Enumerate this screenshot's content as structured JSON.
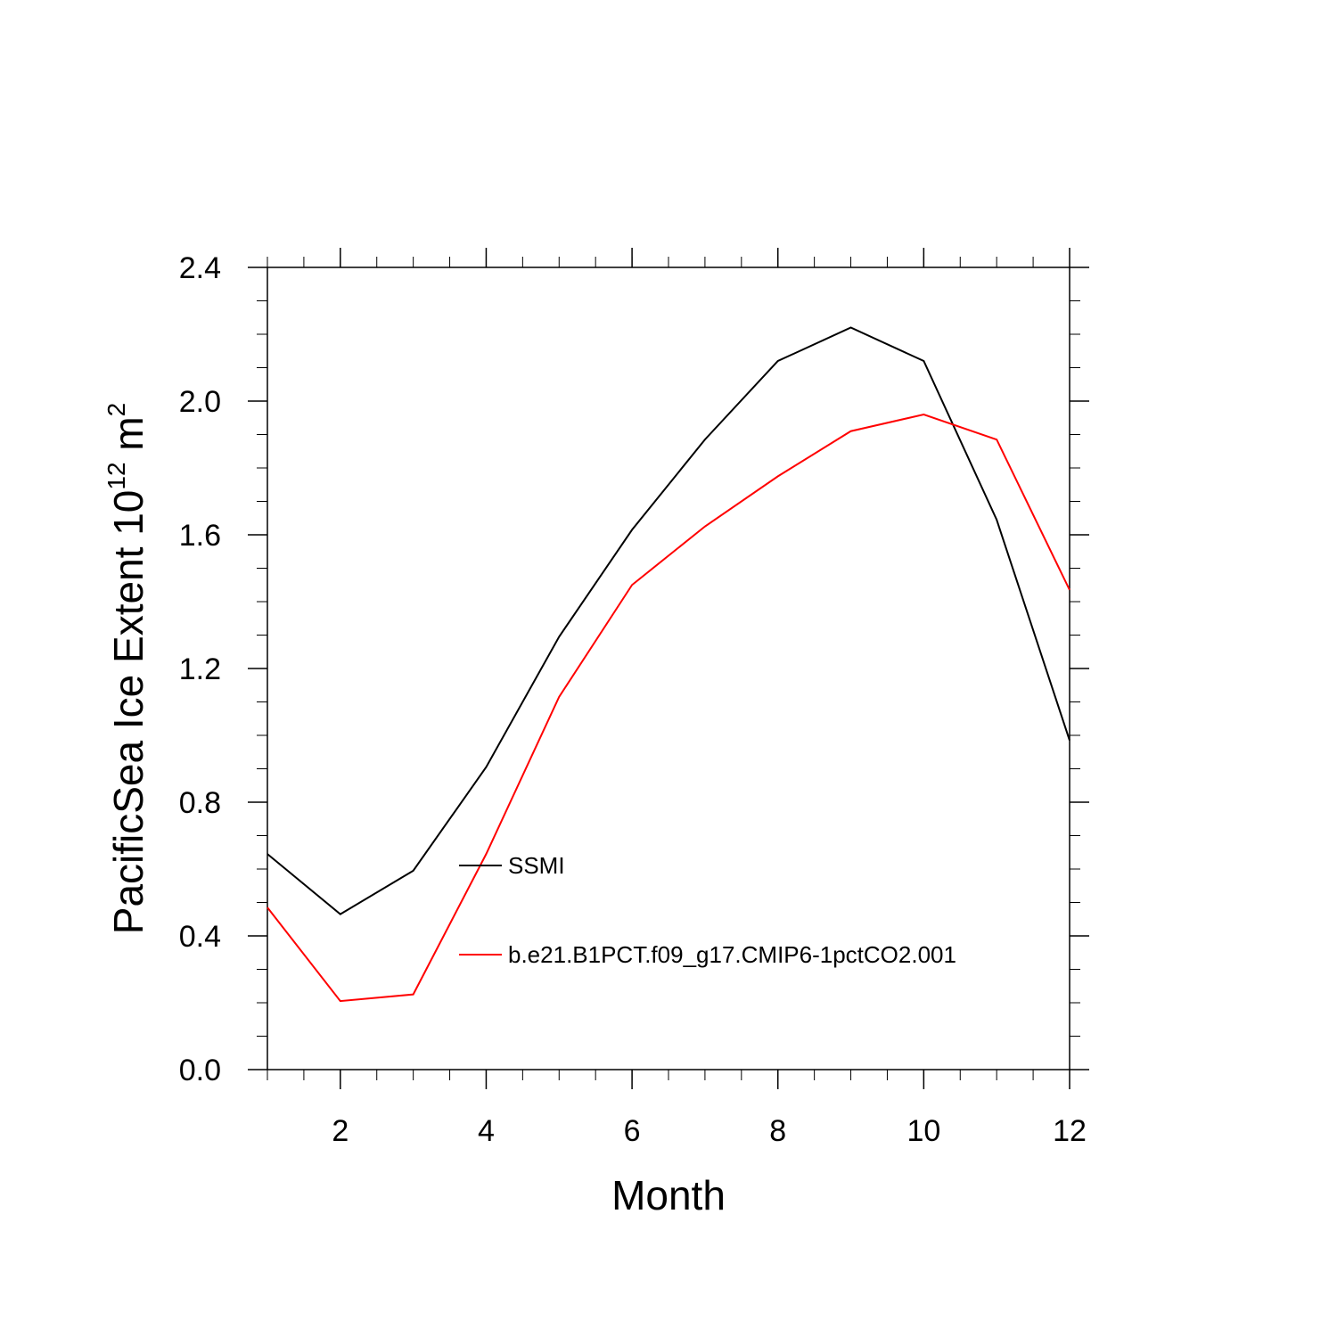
{
  "chart_data": {
    "type": "line",
    "xlabel": "Month",
    "ylabel": "PacificSea Ice Extent 10",
    "ylabel_exponent": "12",
    "ylabel_unit": " m",
    "ylabel_unit_exponent": "2",
    "xlim": [
      1,
      12
    ],
    "ylim": [
      0.0,
      2.4
    ],
    "x_ticks": [
      2,
      4,
      6,
      8,
      10,
      12
    ],
    "x_tick_labels": [
      "2",
      "4",
      "6",
      "8",
      "10",
      "12"
    ],
    "y_ticks": [
      0.0,
      0.4,
      0.8,
      1.2,
      1.6,
      2.0,
      2.4
    ],
    "y_tick_labels": [
      "0.0",
      "0.4",
      "0.8",
      "1.2",
      "1.6",
      "2.0",
      "2.4"
    ],
    "grid": false,
    "legend_position": "center",
    "x": [
      1,
      2,
      3,
      4,
      5,
      6,
      7,
      8,
      9,
      10,
      11,
      12
    ],
    "series": [
      {
        "name": "SSMI",
        "color": "#000000",
        "values": [
          0.645,
          0.465,
          0.595,
          0.905,
          1.295,
          1.615,
          1.885,
          2.12,
          2.22,
          2.12,
          1.645,
          0.985
        ]
      },
      {
        "name": "b.e21.B1PCT.f09_g17.CMIP6-1pctCO2.001",
        "color": "#ff0000",
        "values": [
          0.485,
          0.205,
          0.225,
          0.645,
          1.115,
          1.45,
          1.625,
          1.775,
          1.91,
          1.96,
          1.885,
          1.435
        ]
      }
    ]
  }
}
